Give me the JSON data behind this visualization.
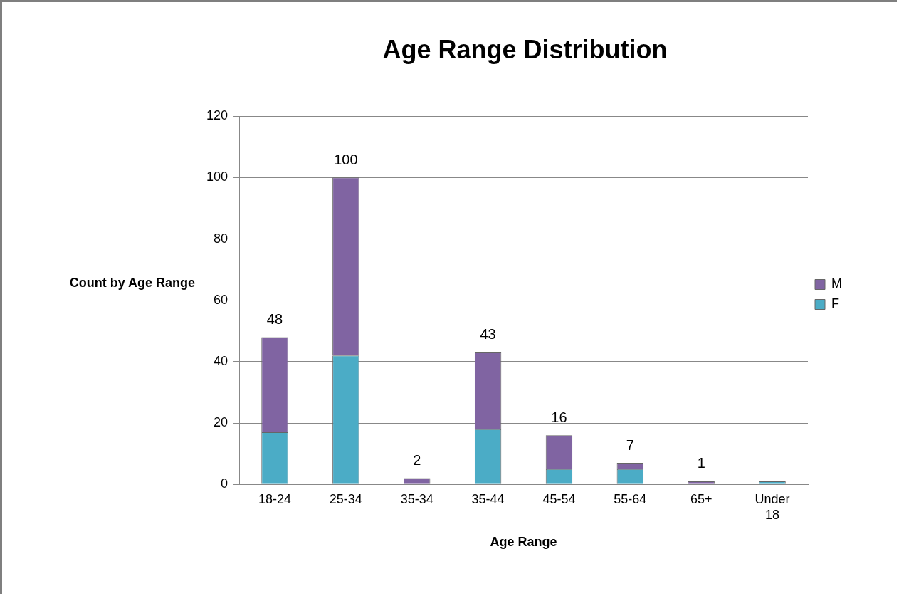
{
  "chart_data": {
    "type": "bar",
    "title": "Age Range Distribution",
    "xlabel": "Age Range",
    "ylabel": "Count by Age Range",
    "categories": [
      "18-24",
      "25-34",
      "35-34",
      "35-44",
      "45-54",
      "55-64",
      "65+",
      "Under 18"
    ],
    "stacked": true,
    "series": [
      {
        "name": "F",
        "color": "#4bacc6",
        "values": [
          17,
          42,
          0,
          18,
          5,
          5,
          0,
          1
        ]
      },
      {
        "name": "M",
        "color": "#8064a2",
        "values": [
          31,
          58,
          2,
          25,
          11,
          2,
          1,
          0
        ]
      }
    ],
    "totals": [
      "48",
      "100",
      "2",
      "43",
      "16",
      "7",
      "1",
      null
    ],
    "ylim": [
      0,
      120
    ],
    "yticks": [
      0,
      20,
      40,
      60,
      80,
      100,
      120
    ],
    "grid": "y",
    "legend": "right"
  }
}
